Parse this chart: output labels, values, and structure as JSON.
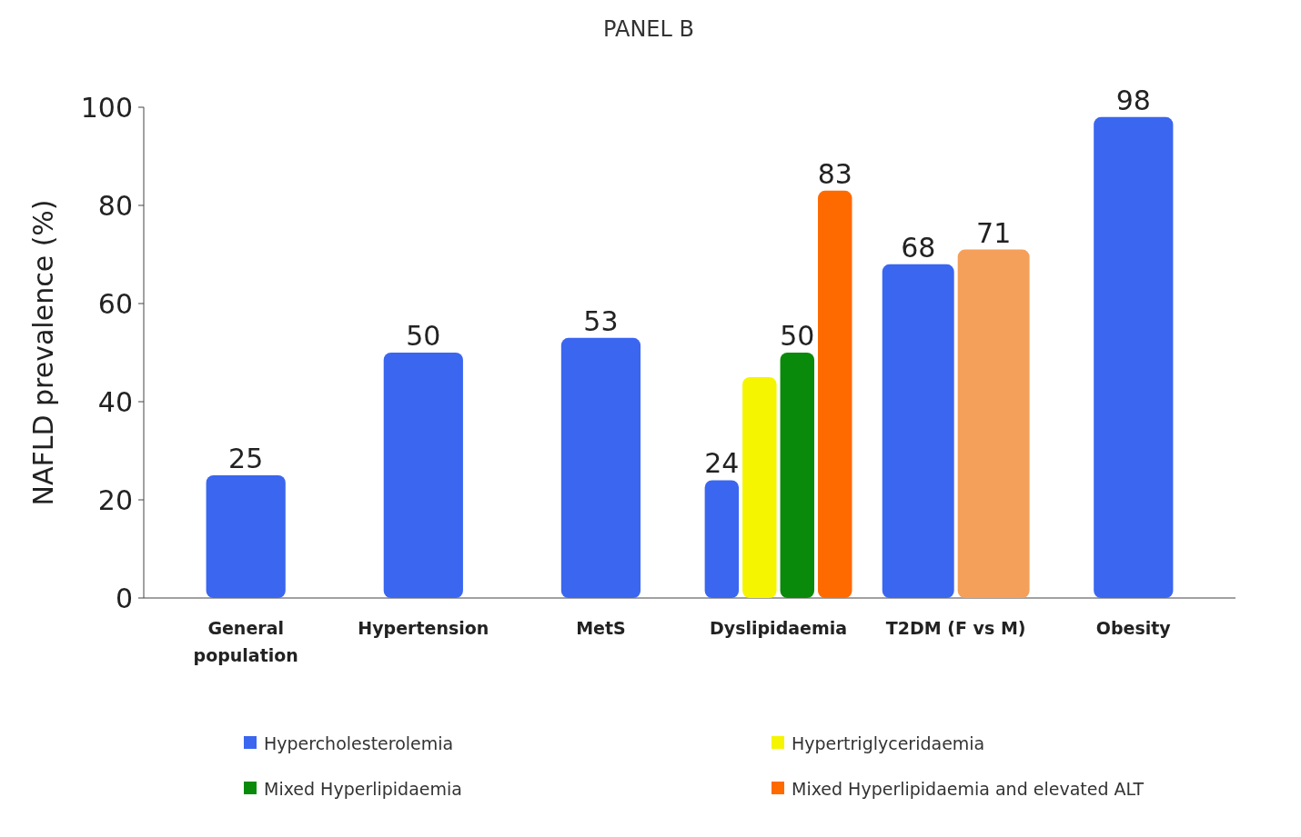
{
  "chart_data": {
    "type": "bar",
    "title": "PANEL B",
    "ylabel": "NAFLD prevalence (%)",
    "categories": [
      "General population",
      "Hypertension",
      "MetS",
      "Dyslipidaemia",
      "T2DM (F vs M)",
      "Obesity"
    ],
    "series": [
      {
        "name": "Hypercholesterolemia",
        "color": "#3a66f0",
        "values": [
          25,
          50,
          53,
          24,
          68,
          98
        ],
        "value_labels": [
          "25",
          "50",
          "53",
          "24",
          "68",
          "98"
        ]
      },
      {
        "name": "Hypertriglyceridaemia",
        "color": "#f5f500",
        "values": [
          null,
          null,
          null,
          45,
          null,
          null
        ],
        "value_labels": [
          null,
          null,
          null,
          null,
          null,
          null
        ]
      },
      {
        "name": "Mixed Hyperlipidaemia",
        "color": "#0a8a0a",
        "values": [
          null,
          null,
          null,
          50,
          null,
          null
        ],
        "value_labels": [
          null,
          null,
          null,
          "50",
          null,
          null
        ]
      },
      {
        "name": "Mixed Hyperlipidaemia and elevated ALT",
        "color": "#ff6a00",
        "values": [
          null,
          null,
          null,
          83,
          null,
          null
        ],
        "value_labels": [
          null,
          null,
          null,
          "83",
          null,
          null
        ]
      },
      {
        "color": "#f5a05a",
        "values": [
          null,
          null,
          null,
          null,
          71,
          null
        ],
        "value_labels": [
          null,
          null,
          null,
          null,
          "71",
          null
        ]
      }
    ],
    "ylim": [
      0,
      100
    ],
    "yticks": [
      0,
      20,
      40,
      60,
      80,
      100
    ],
    "legend": "bottom"
  }
}
